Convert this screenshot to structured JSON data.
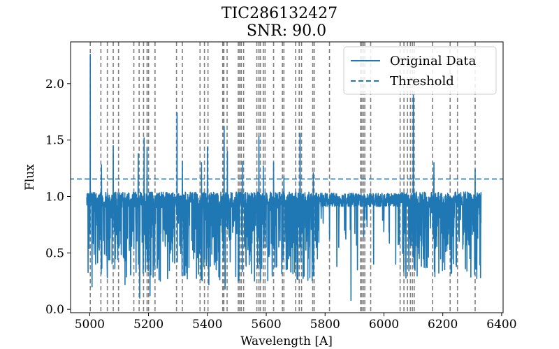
{
  "chart_data": {
    "type": "line",
    "title": "TIC286132427",
    "subtitle": "SNR: 90.0",
    "xlabel": "Wavelength [A]",
    "ylabel": "Flux",
    "xlim": [
      4935,
      6405
    ],
    "ylim": [
      -0.03,
      2.37
    ],
    "xticks": [
      5000,
      5200,
      5400,
      5600,
      5800,
      6000,
      6200,
      6400
    ],
    "yticks": [
      0.0,
      0.5,
      1.0,
      1.5,
      2.0
    ],
    "xtick_labels": [
      "5000",
      "5200",
      "5400",
      "5600",
      "5800",
      "6000",
      "6200",
      "6400"
    ],
    "ytick_labels": [
      "0.0",
      "0.5",
      "1.0",
      "1.5",
      "2.0"
    ],
    "threshold": 1.155,
    "series": [
      {
        "name": "Original Data",
        "color": "#1f77b4",
        "x_range": [
          4990,
          6330
        ],
        "baseline": 0.97,
        "spikes": [
          {
            "x": 5002,
            "y": 2.26
          },
          {
            "x": 5040,
            "y": 1.28
          },
          {
            "x": 5080,
            "y": 1.45
          },
          {
            "x": 5165,
            "y": 1.38
          },
          {
            "x": 5185,
            "y": 1.52
          },
          {
            "x": 5195,
            "y": 1.43
          },
          {
            "x": 5297,
            "y": 1.74
          },
          {
            "x": 5315,
            "y": 1.31
          },
          {
            "x": 5380,
            "y": 1.3
          },
          {
            "x": 5400,
            "y": 1.44
          },
          {
            "x": 5457,
            "y": 1.62
          },
          {
            "x": 5468,
            "y": 1.4
          },
          {
            "x": 5520,
            "y": 1.31
          },
          {
            "x": 5575,
            "y": 1.53
          },
          {
            "x": 5590,
            "y": 1.27
          },
          {
            "x": 5625,
            "y": 1.3
          },
          {
            "x": 5660,
            "y": 1.18
          },
          {
            "x": 5715,
            "y": 1.56
          },
          {
            "x": 5760,
            "y": 1.21
          },
          {
            "x": 6100,
            "y": 1.9
          },
          {
            "x": 6170,
            "y": 1.3
          },
          {
            "x": 6310,
            "y": 1.24
          }
        ],
        "dips": [
          {
            "x": 5008,
            "y": 0.2
          },
          {
            "x": 5060,
            "y": 0.28
          },
          {
            "x": 5120,
            "y": 0.22
          },
          {
            "x": 5170,
            "y": 0.1
          },
          {
            "x": 5205,
            "y": 0.12
          },
          {
            "x": 5240,
            "y": 0.25
          },
          {
            "x": 5320,
            "y": 0.3
          },
          {
            "x": 5405,
            "y": 0.22
          },
          {
            "x": 5460,
            "y": 0.18
          },
          {
            "x": 5505,
            "y": 0.25
          },
          {
            "x": 5560,
            "y": 0.25
          },
          {
            "x": 5620,
            "y": 0.4
          },
          {
            "x": 5700,
            "y": 0.42
          },
          {
            "x": 5770,
            "y": 0.55
          },
          {
            "x": 5840,
            "y": 0.38
          },
          {
            "x": 5888,
            "y": 0.08
          },
          {
            "x": 5910,
            "y": 0.35
          },
          {
            "x": 5965,
            "y": 0.4
          },
          {
            "x": 6040,
            "y": 0.4
          },
          {
            "x": 6120,
            "y": 0.45
          },
          {
            "x": 6200,
            "y": 0.5
          }
        ]
      },
      {
        "name": "Threshold",
        "color": "#1f77b4",
        "style": "dashed",
        "value": 1.155
      }
    ],
    "vlines": [
      5002,
      5038,
      5060,
      5080,
      5098,
      5150,
      5168,
      5183,
      5195,
      5200,
      5222,
      5295,
      5315,
      5375,
      5390,
      5402,
      5452,
      5456,
      5467,
      5505,
      5510,
      5515,
      5523,
      5568,
      5575,
      5580,
      5590,
      5596,
      5625,
      5655,
      5660,
      5700,
      5712,
      5720,
      5758,
      5763,
      5815,
      5920,
      5925,
      5930,
      5935,
      5955,
      6055,
      6068,
      6080,
      6090,
      6097,
      6103,
      6165,
      6225,
      6250,
      6310
    ],
    "vline_color": "#808080",
    "legend": {
      "position": "top-right",
      "entries": [
        "Original Data",
        "Threshold"
      ]
    },
    "grid": false
  }
}
